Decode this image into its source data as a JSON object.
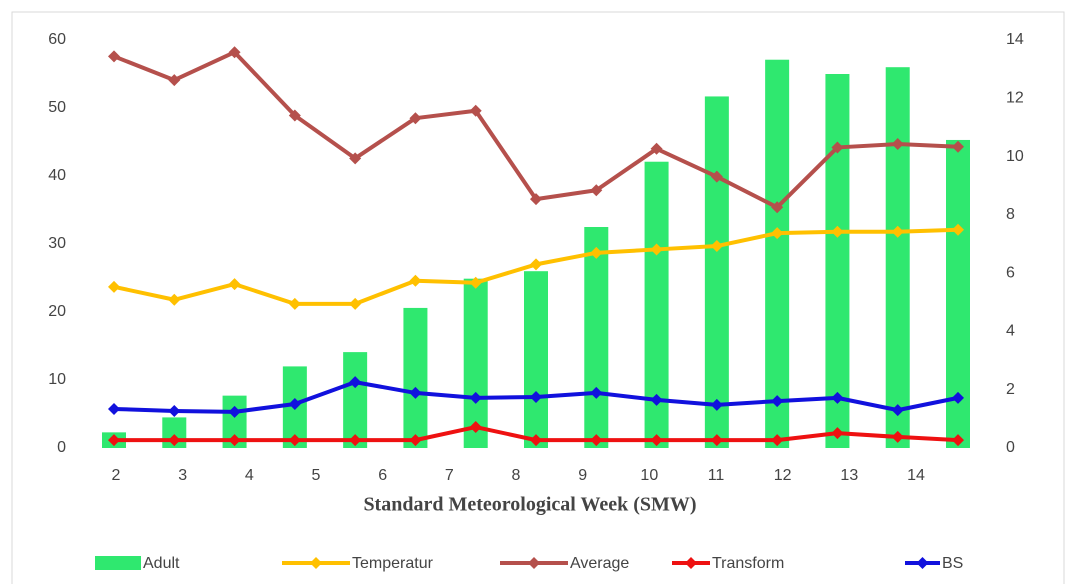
{
  "chart_data": {
    "type": "bar",
    "x_label": "Standard Meteorological Week (SMW)",
    "categories": [
      "2",
      "3",
      "4",
      "5",
      "6",
      "7",
      "8",
      "9",
      "10",
      "11",
      "12",
      "13",
      "14",
      null,
      null
    ],
    "series": [
      {
        "name": "Adult",
        "type": "bar",
        "color": "#2fe86f",
        "values": [
          2.3,
          4.5,
          7.7,
          12,
          14.1,
          20.6,
          24.9,
          26,
          32.5,
          42.1,
          51.7,
          57.1,
          55,
          56,
          45.3
        ]
      },
      {
        "name": "Temperatur",
        "type": "line",
        "color": "#ffc000",
        "values": [
          23.7,
          21.8,
          24.1,
          21.2,
          21.2,
          24.6,
          24.3,
          27,
          28.7,
          29.2,
          29.7,
          31.6,
          31.8,
          31.8,
          32.1
        ]
      },
      {
        "name": "Average",
        "type": "line",
        "color": "#b5504c",
        "values": [
          57.6,
          54.1,
          58.2,
          48.9,
          42.6,
          48.5,
          49.6,
          36.6,
          37.9,
          44.0,
          39.9,
          35.4,
          44.2,
          44.7,
          44.3
        ]
      },
      {
        "name": "Transform",
        "type": "line",
        "color": "#ee1111",
        "axis": "y2",
        "values": [
          0.27,
          0.27,
          0.27,
          0.27,
          0.27,
          0.27,
          0.72,
          0.27,
          0.27,
          0.27,
          0.27,
          0.27,
          0.51,
          0.38,
          0.27
        ]
      },
      {
        "name": "BS",
        "type": "line",
        "color": "#1111dd",
        "axis": "y2",
        "values": [
          1.34,
          1.27,
          1.24,
          1.51,
          2.26,
          1.89,
          1.72,
          1.75,
          1.89,
          1.65,
          1.48,
          1.61,
          1.72,
          1.3,
          1.72
        ]
      }
    ],
    "ylim": [
      0,
      60
    ],
    "yticks": [
      0,
      10,
      20,
      30,
      40,
      50,
      60
    ],
    "y2lim": [
      0,
      14
    ],
    "y2ticks": [
      0,
      2,
      4,
      6,
      8,
      10,
      12,
      14
    ],
    "grid": false,
    "legend": "bottom"
  }
}
